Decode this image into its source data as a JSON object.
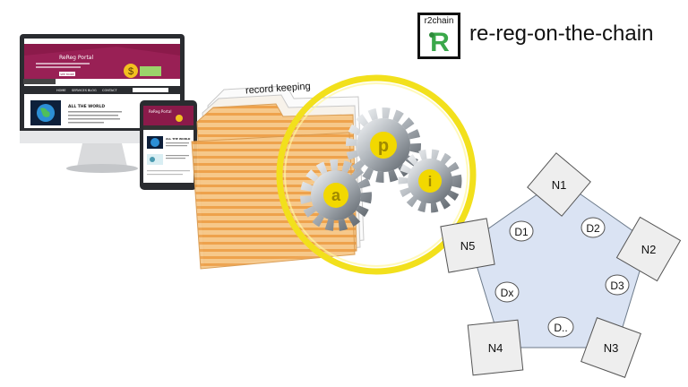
{
  "brand": {
    "logo_text": "r2chain",
    "logo_glyph": "R",
    "title": "re-reg-on-the-chain"
  },
  "monitor": {
    "portal_title": "ReReg Portal",
    "section_title": "ALL THE WORLD",
    "button_label": "SEE MORE",
    "menu_items": [
      "HOME",
      "SERVICES",
      "BLOG",
      "CONTACT"
    ]
  },
  "tablet": {
    "portal_title": "ReReg Portal",
    "section_title": "ALL THE WORLD"
  },
  "folder": {
    "label": "record keeping"
  },
  "gears": {
    "letters": [
      "a",
      "p",
      "i"
    ]
  },
  "network": {
    "nodes": [
      "N1",
      "N2",
      "N3",
      "N4",
      "N5"
    ],
    "docs": [
      "D1",
      "D2",
      "D3",
      "D..",
      "Dx"
    ]
  },
  "colors": {
    "accent_yellow": "#f2e01c",
    "folder_orange": "#f2b261",
    "pentagon_fill": "#dae3f3",
    "node_fill": "#eeeeee",
    "portal_magenta": "#8b1a4a"
  }
}
